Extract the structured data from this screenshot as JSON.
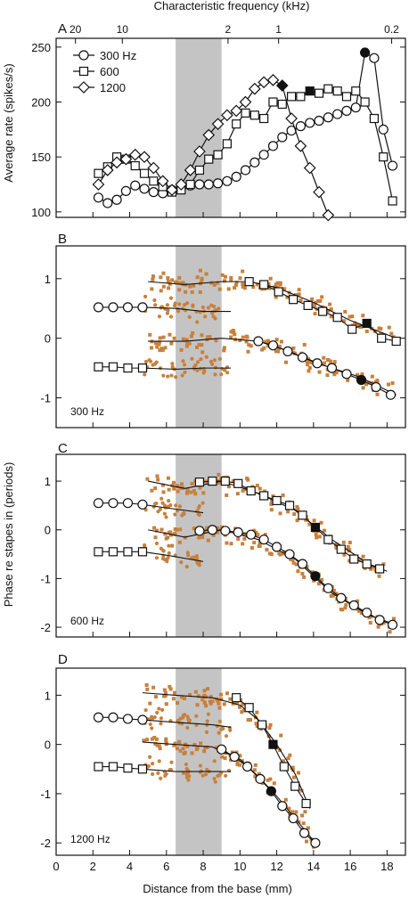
{
  "figure": {
    "top_axis_title": "Characteristic frequency (kHz)",
    "x_axis_title": "Distance from the base (mm)",
    "y_title_rate": "Average rate (spikes/s)",
    "y_title_phase": "Phase re stapes in (periods)",
    "accent_color": "#c8803c",
    "shade_color": "#c4c4c4"
  },
  "chart_data": [
    {
      "panel": "A",
      "type": "line",
      "ylabel": "Average rate (spikes/s)",
      "xlabel": "Distance from the base (mm)",
      "xlim": [
        0,
        19
      ],
      "ylim": [
        95,
        258
      ],
      "y_ticks": [
        100,
        150,
        200,
        250
      ],
      "x_ticks": [
        0,
        2,
        4,
        6,
        8,
        10,
        12,
        14,
        16,
        18
      ],
      "top_axis": {
        "title": "Characteristic frequency (kHz)",
        "ticks": [
          {
            "label": "20",
            "x": 1.05
          },
          {
            "label": "10",
            "x": 3.6
          },
          {
            "label": "2",
            "x": 9.35
          },
          {
            "label": "1",
            "x": 12.1
          },
          {
            "label": "0.2",
            "x": 18.25
          }
        ]
      },
      "shaded_region": [
        6.5,
        9.0
      ],
      "legend": {
        "position": "top-left",
        "entries": [
          "300 Hz",
          "600",
          "1200"
        ]
      },
      "series": [
        {
          "name": "300 Hz",
          "marker": "circle",
          "x": [
            2.3,
            2.8,
            3.3,
            3.8,
            4.3,
            4.8,
            5.3,
            5.8,
            6.3,
            6.8,
            7.3,
            7.8,
            8.3,
            8.8,
            9.3,
            9.8,
            10.3,
            10.8,
            11.3,
            11.8,
            12.3,
            12.8,
            13.3,
            13.8,
            14.3,
            14.8,
            15.3,
            15.8,
            16.3,
            16.8,
            17.3,
            17.8,
            18.3
          ],
          "y": [
            113,
            108,
            111,
            119,
            124,
            121,
            118,
            117,
            120,
            122,
            124,
            125,
            125,
            126,
            128,
            132,
            138,
            145,
            152,
            160,
            168,
            174,
            178,
            181,
            183,
            186,
            189,
            192,
            195,
            245,
            240,
            175,
            142
          ],
          "filled_index": 29
        },
        {
          "name": "600",
          "marker": "square",
          "x": [
            2.3,
            2.8,
            3.3,
            3.8,
            4.3,
            4.8,
            5.3,
            5.8,
            6.3,
            6.8,
            7.3,
            7.8,
            8.3,
            8.8,
            9.3,
            9.8,
            10.3,
            10.8,
            11.3,
            11.8,
            12.3,
            12.8,
            13.3,
            13.8,
            14.3,
            14.8,
            15.3,
            15.8,
            16.3,
            16.8,
            17.3,
            17.8,
            18.3
          ],
          "y": [
            135,
            141,
            150,
            148,
            142,
            135,
            128,
            123,
            118,
            120,
            125,
            138,
            148,
            152,
            162,
            180,
            190,
            188,
            185,
            200,
            198,
            205,
            205,
            210,
            208,
            212,
            210,
            205,
            210,
            200,
            185,
            150,
            110
          ],
          "filled_index": 23
        },
        {
          "name": "1200",
          "marker": "diamond",
          "x": [
            2.3,
            2.8,
            3.3,
            3.8,
            4.3,
            4.8,
            5.3,
            5.8,
            6.3,
            6.8,
            7.3,
            7.8,
            8.3,
            8.8,
            9.3,
            9.8,
            10.3,
            10.8,
            11.3,
            11.8,
            12.3,
            12.8,
            13.3,
            13.8,
            14.3,
            14.8
          ],
          "y": [
            125,
            138,
            145,
            148,
            152,
            150,
            140,
            128,
            120,
            125,
            138,
            155,
            170,
            180,
            188,
            192,
            200,
            212,
            218,
            220,
            215,
            185,
            160,
            140,
            118,
            97
          ],
          "filled_index": 20
        }
      ]
    },
    {
      "panel": "B",
      "type": "scatter",
      "annotation": "300 Hz",
      "ylabel": "Phase re stapes in (periods)",
      "xlim": [
        0,
        19
      ],
      "ylim": [
        -1.5,
        1.55
      ],
      "y_ticks": [
        -1,
        0,
        1
      ],
      "shaded_region": [
        6.5,
        9.0
      ],
      "scatter_spread": 0.12,
      "series": [
        {
          "marker": "square",
          "x": [
            10.5,
            11.3,
            12.1,
            12.9,
            13.7,
            14.5,
            15.3,
            16.1,
            16.9,
            17.7,
            18.5
          ],
          "y": [
            0.95,
            0.9,
            0.78,
            0.65,
            0.55,
            0.45,
            0.35,
            0.15,
            0.25,
            0.0,
            -0.05
          ],
          "filled_index": 8
        },
        {
          "marker": "circle",
          "x": [
            11.0,
            11.8,
            12.6,
            13.4,
            14.2,
            15.0,
            15.8,
            16.6,
            17.4,
            18.2
          ],
          "y": [
            -0.05,
            -0.12,
            -0.22,
            -0.32,
            -0.42,
            -0.5,
            -0.6,
            -0.7,
            -0.82,
            -0.95
          ],
          "filled_index": 7
        },
        {
          "marker": "circle",
          "x": [
            2.3,
            3.1,
            3.9,
            4.7
          ],
          "y": [
            0.52,
            0.52,
            0.52,
            0.52
          ]
        },
        {
          "marker": "square",
          "x": [
            2.3,
            3.1,
            3.9,
            4.7
          ],
          "y": [
            -0.48,
            -0.48,
            -0.5,
            -0.5
          ]
        }
      ],
      "trend_lines": [
        {
          "x": [
            5.0,
            7.0,
            9.0,
            10.5,
            12.0,
            14.0,
            16.0,
            18.5
          ],
          "y": [
            0.95,
            0.9,
            0.95,
            0.95,
            0.85,
            0.6,
            0.3,
            0.0
          ]
        },
        {
          "x": [
            4.7,
            6.5,
            8.0,
            9.5
          ],
          "y": [
            0.52,
            0.5,
            0.45,
            0.45
          ]
        },
        {
          "x": [
            5.0,
            7.0,
            9.0,
            11.0,
            12.5,
            14.5,
            16.5,
            18.5
          ],
          "y": [
            -0.05,
            -0.05,
            0.0,
            -0.05,
            -0.2,
            -0.45,
            -0.65,
            -0.95
          ]
        },
        {
          "x": [
            4.7,
            6.5,
            8.0,
            9.5
          ],
          "y": [
            -0.5,
            -0.52,
            -0.5,
            -0.5
          ]
        }
      ]
    },
    {
      "panel": "C",
      "type": "scatter",
      "annotation": "600 Hz",
      "ylabel": "Phase re stapes in (periods)",
      "xlim": [
        0,
        19
      ],
      "ylim": [
        -2.2,
        1.55
      ],
      "y_ticks": [
        -2,
        -1,
        0,
        1
      ],
      "shaded_region": [
        6.5,
        9.0
      ],
      "scatter_spread": 0.14,
      "series": [
        {
          "marker": "square",
          "x": [
            7.8,
            8.5,
            9.2,
            9.9,
            10.6,
            11.3,
            12.0,
            12.7,
            13.4,
            14.1,
            14.8,
            15.5,
            16.2,
            16.9,
            17.6
          ],
          "y": [
            0.98,
            1.0,
            1.0,
            0.95,
            0.8,
            0.7,
            0.6,
            0.5,
            0.3,
            0.05,
            -0.2,
            -0.4,
            -0.6,
            -0.7,
            -0.8
          ],
          "filled_index": 9
        },
        {
          "marker": "circle",
          "x": [
            7.8,
            8.5,
            9.2,
            9.9,
            10.6,
            11.3,
            12.0,
            12.7,
            13.4,
            14.1,
            14.8,
            15.5,
            16.2,
            16.9,
            17.6,
            18.3
          ],
          "y": [
            -0.02,
            0.0,
            -0.02,
            -0.05,
            -0.1,
            -0.2,
            -0.35,
            -0.5,
            -0.7,
            -0.95,
            -1.2,
            -1.4,
            -1.55,
            -1.7,
            -1.85,
            -1.95
          ],
          "filled_index": 9
        },
        {
          "marker": "circle",
          "x": [
            2.3,
            3.1,
            3.9,
            4.7
          ],
          "y": [
            0.55,
            0.55,
            0.55,
            0.52
          ]
        },
        {
          "marker": "square",
          "x": [
            2.3,
            3.1,
            3.9,
            4.7
          ],
          "y": [
            -0.45,
            -0.45,
            -0.45,
            -0.45
          ]
        }
      ],
      "trend_lines": [
        {
          "x": [
            5.0,
            7.0,
            9.0,
            11.0,
            13.0,
            15.0,
            17.0,
            18.0
          ],
          "y": [
            1.0,
            0.85,
            1.0,
            0.75,
            0.4,
            -0.2,
            -0.7,
            -0.85
          ]
        },
        {
          "x": [
            4.7,
            6.0,
            8.0
          ],
          "y": [
            0.52,
            0.45,
            0.35
          ]
        },
        {
          "x": [
            5.0,
            7.0,
            9.0,
            11.0,
            13.0,
            15.0,
            17.0,
            18.5
          ],
          "y": [
            0.0,
            -0.15,
            0.0,
            -0.2,
            -0.6,
            -1.3,
            -1.75,
            -1.95
          ]
        },
        {
          "x": [
            4.7,
            6.0,
            8.0
          ],
          "y": [
            -0.45,
            -0.52,
            -0.65
          ]
        }
      ]
    },
    {
      "panel": "D",
      "type": "scatter",
      "annotation": "1200 Hz",
      "ylabel": "Phase re stapes in (periods)",
      "xlim": [
        0,
        19
      ],
      "ylim": [
        -2.25,
        1.55
      ],
      "y_ticks": [
        -2,
        -1,
        0,
        1
      ],
      "shaded_region": [
        6.5,
        9.0
      ],
      "scatter_spread": 0.15,
      "series": [
        {
          "marker": "square",
          "x": [
            9.8,
            10.5,
            11.2,
            11.8,
            12.4,
            13.0,
            13.6
          ],
          "y": [
            0.95,
            0.75,
            0.4,
            0.0,
            -0.45,
            -0.85,
            -1.2
          ],
          "filled_index": 3
        },
        {
          "marker": "circle",
          "x": [
            9.0,
            9.7,
            10.4,
            11.1,
            11.7,
            12.3,
            12.9,
            13.5,
            14.1
          ],
          "y": [
            -0.1,
            -0.25,
            -0.45,
            -0.7,
            -0.95,
            -1.25,
            -1.5,
            -1.8,
            -2.0
          ],
          "filled_index": 4
        },
        {
          "marker": "circle",
          "x": [
            2.3,
            3.1,
            3.9,
            4.7
          ],
          "y": [
            0.55,
            0.55,
            0.52,
            0.5
          ]
        },
        {
          "marker": "square",
          "x": [
            2.3,
            3.1,
            3.9,
            4.7
          ],
          "y": [
            -0.45,
            -0.45,
            -0.48,
            -0.5
          ]
        }
      ],
      "trend_lines": [
        {
          "x": [
            4.7,
            6.5,
            8.5,
            10.0,
            11.0,
            12.0,
            13.0,
            13.8
          ],
          "y": [
            1.05,
            1.0,
            0.95,
            0.8,
            0.5,
            0.0,
            -0.6,
            -1.3
          ]
        },
        {
          "x": [
            4.7,
            6.5,
            8.5,
            9.5
          ],
          "y": [
            0.5,
            0.45,
            0.4,
            0.35
          ]
        },
        {
          "x": [
            4.7,
            6.5,
            8.5,
            10.0,
            11.0,
            12.0,
            13.0,
            14.1
          ],
          "y": [
            0.05,
            0.0,
            -0.05,
            -0.3,
            -0.65,
            -1.05,
            -1.5,
            -2.0
          ]
        },
        {
          "x": [
            4.7,
            6.5,
            8.5,
            9.5
          ],
          "y": [
            -0.5,
            -0.55,
            -0.55,
            -0.55
          ]
        }
      ]
    }
  ]
}
